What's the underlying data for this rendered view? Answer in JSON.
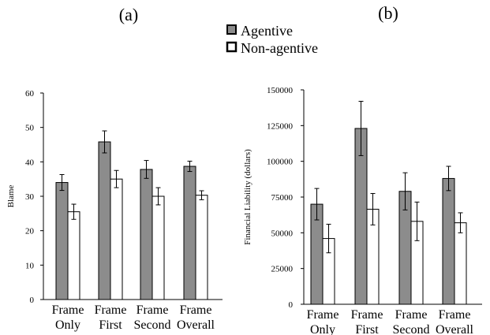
{
  "legend": {
    "series": [
      {
        "name": "Agentive",
        "color": "#8c8c8c"
      },
      {
        "name": "Non-agentive",
        "color": "#ffffff"
      }
    ]
  },
  "chart_data": [
    {
      "type": "bar",
      "panel_label": "(a)",
      "ylabel": "Blame",
      "ylim": [
        0,
        60
      ],
      "yticks": [
        0,
        10,
        20,
        30,
        40,
        50,
        60
      ],
      "ytick_labels": [
        "0",
        "10",
        "20",
        "30",
        "40",
        "50",
        "60"
      ],
      "categories": [
        [
          "Frame",
          "Only"
        ],
        [
          "Frame",
          "First"
        ],
        [
          "Frame",
          "Second"
        ],
        [
          "Frame",
          "Overall"
        ]
      ],
      "series": [
        {
          "name": "Agentive",
          "values": [
            34,
            45.8,
            37.8,
            38.7
          ],
          "error": [
            2.3,
            3.2,
            2.6,
            1.5
          ]
        },
        {
          "name": "Non-agentive",
          "values": [
            25.5,
            35,
            30,
            30.3
          ],
          "error": [
            2.2,
            2.5,
            2.5,
            1.3
          ]
        }
      ],
      "grid": false
    },
    {
      "type": "bar",
      "panel_label": "(b)",
      "ylabel": "Financial Liability (dollars)",
      "ylim": [
        0,
        150000
      ],
      "yticks": [
        0,
        25000,
        50000,
        75000,
        100000,
        125000,
        150000
      ],
      "ytick_labels": [
        "0",
        "25000",
        "50000",
        "75000",
        "100000",
        "125000",
        "150000"
      ],
      "categories": [
        [
          "Frame",
          "Only"
        ],
        [
          "Frame",
          "First"
        ],
        [
          "Frame",
          "Second"
        ],
        [
          "Frame",
          "Overall"
        ]
      ],
      "series": [
        {
          "name": "Agentive",
          "values": [
            70000,
            123000,
            79000,
            88000
          ],
          "error": [
            11000,
            19000,
            13000,
            8500
          ]
        },
        {
          "name": "Non-agentive",
          "values": [
            46000,
            66500,
            58000,
            57000
          ],
          "error": [
            10000,
            11000,
            13500,
            7000
          ]
        }
      ],
      "grid": false
    }
  ]
}
